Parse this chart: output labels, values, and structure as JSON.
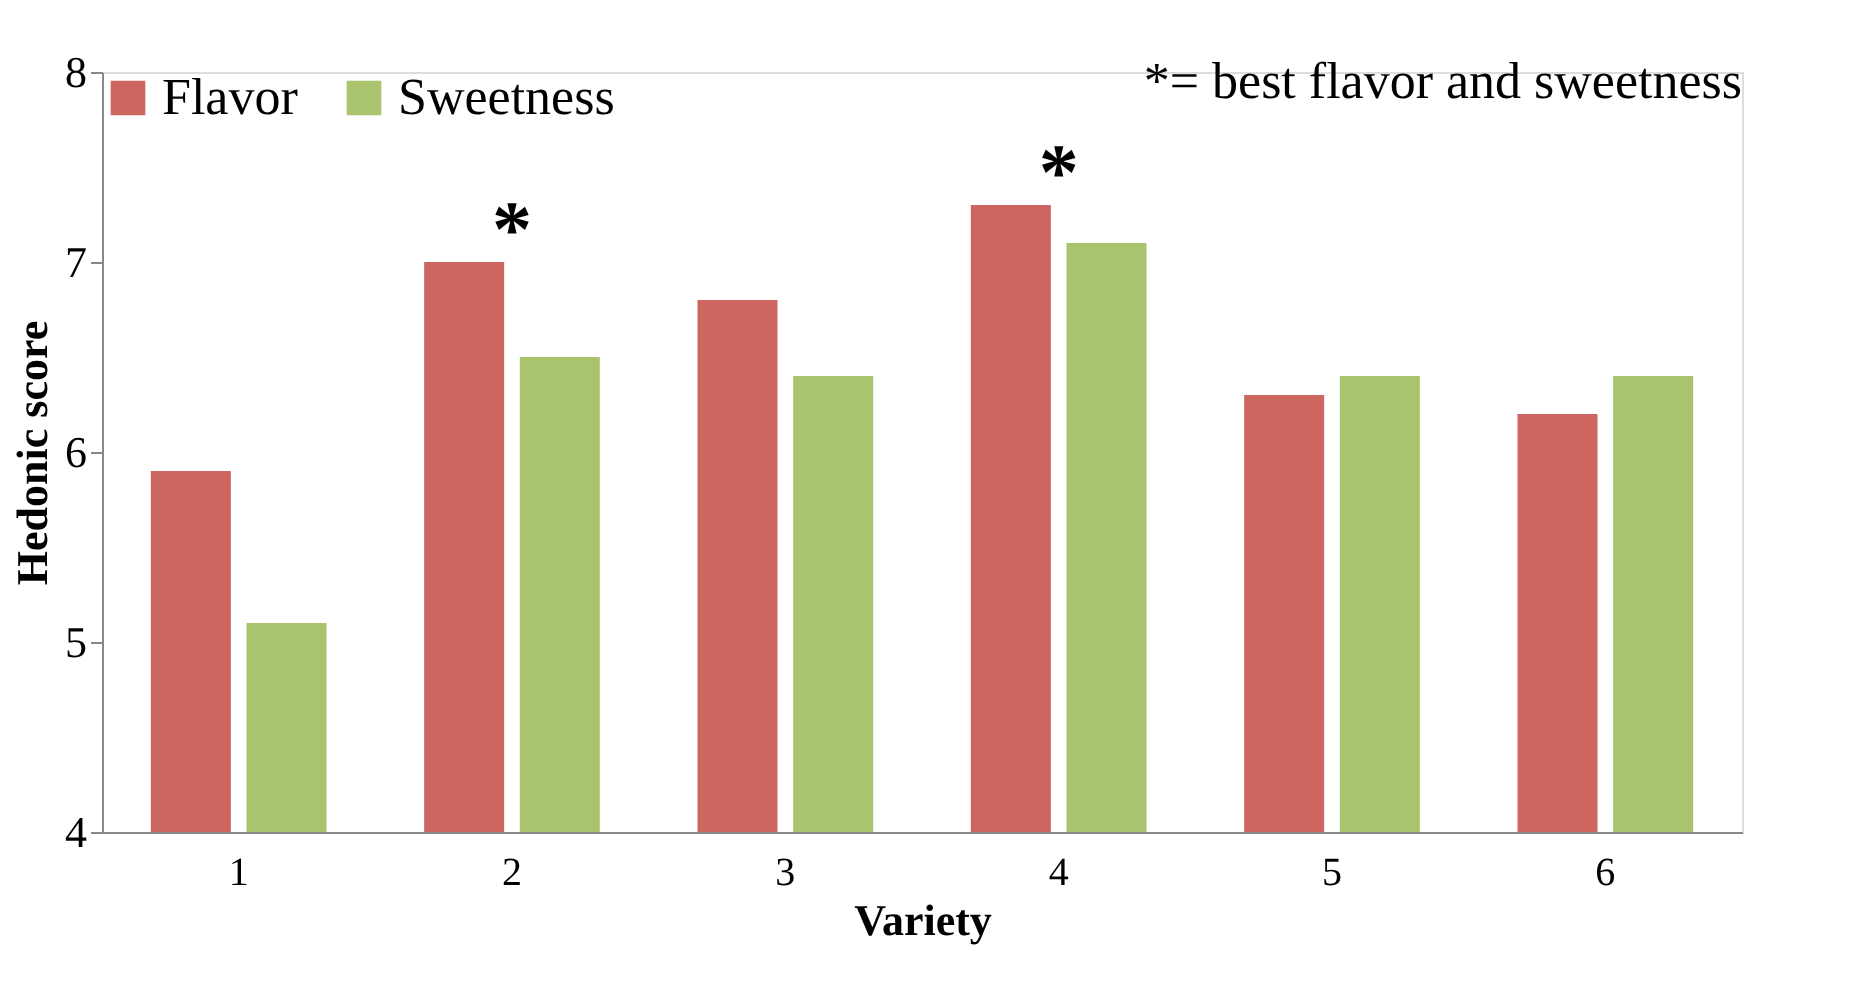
{
  "chart_data": {
    "type": "bar",
    "xlabel": "Variety",
    "ylabel": "Hedonic score",
    "categories": [
      "1",
      "2",
      "3",
      "4",
      "5",
      "6"
    ],
    "series": [
      {
        "name": "Flavor",
        "color": "#cd6660",
        "values": [
          5.9,
          7.0,
          6.8,
          7.3,
          6.3,
          6.2
        ]
      },
      {
        "name": "Sweetness",
        "color": "#a9c46c",
        "values": [
          5.1,
          6.5,
          6.4,
          7.1,
          6.4,
          6.4
        ]
      }
    ],
    "ylim": [
      4,
      8
    ],
    "yticks": [
      4,
      5,
      6,
      7,
      8
    ],
    "grid": false,
    "legend": "top left",
    "annotations": [
      {
        "text": "*",
        "x": "2",
        "y": 7.0
      },
      {
        "text": "*",
        "x": "4",
        "y": 7.3
      },
      "*= best flavor and sweetness"
    ]
  }
}
